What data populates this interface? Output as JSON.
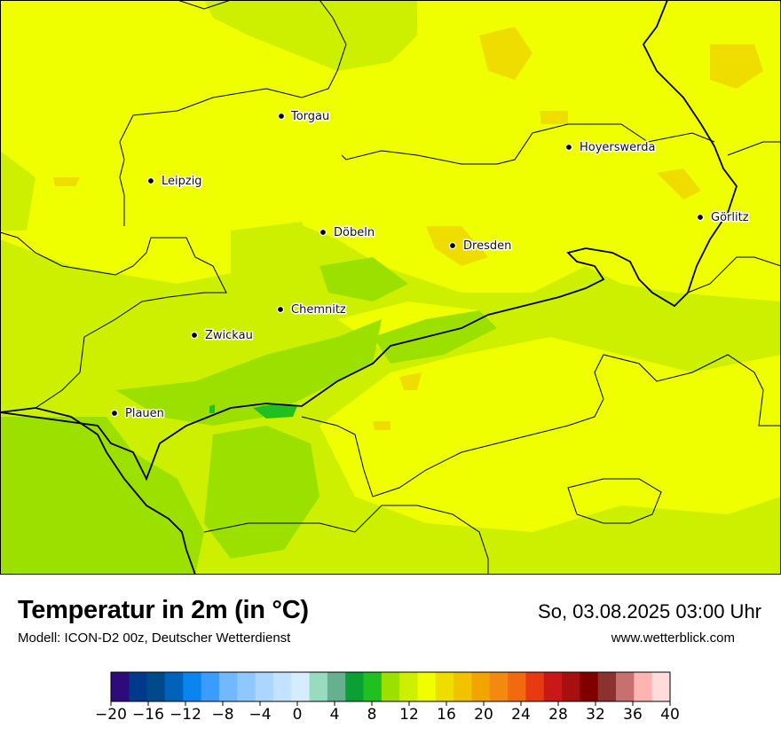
{
  "map": {
    "background_color": "#f0ff00",
    "cities": [
      {
        "name": "Torgau"
      },
      {
        "name": "Hoyerswerda"
      },
      {
        "name": "Leipzig"
      },
      {
        "name": "Görlitz"
      },
      {
        "name": "Döbeln"
      },
      {
        "name": "Dresden"
      },
      {
        "name": "Chemnitz"
      },
      {
        "name": "Zwickau"
      },
      {
        "name": "Plauen"
      }
    ]
  },
  "header": {
    "title": "Temperatur in 2m (in °C)",
    "subtitle": "Modell: ICON-D2 00z, Deutscher Wetterdienst",
    "datetime": "So, 03.08.2025 03:00 Uhr",
    "website": "www.wetterblick.com"
  },
  "colorbar": {
    "min": -20,
    "max": 40,
    "step": 2,
    "tick_labels": [
      "−20",
      "−16",
      "−12",
      "−8",
      "−4",
      "0",
      "4",
      "8",
      "12",
      "16",
      "20",
      "24",
      "28",
      "32",
      "36",
      "40"
    ],
    "colors": [
      "#2e0a7a",
      "#003a8c",
      "#004a8c",
      "#0062b8",
      "#0a84f0",
      "#3a9cff",
      "#72b8ff",
      "#8fc8ff",
      "#aad6ff",
      "#c2e2ff",
      "#d6ecff",
      "#98dcc0",
      "#66b090",
      "#0aa033",
      "#20c020",
      "#9ce000",
      "#cdf000",
      "#f0ff00",
      "#f0dd00",
      "#f2c200",
      "#f2a400",
      "#f28a10",
      "#f26a10",
      "#e83a10",
      "#c81818",
      "#a81010",
      "#800000",
      "#8c3030",
      "#c87070",
      "#ffb4b4",
      "#ffdcdc"
    ]
  }
}
